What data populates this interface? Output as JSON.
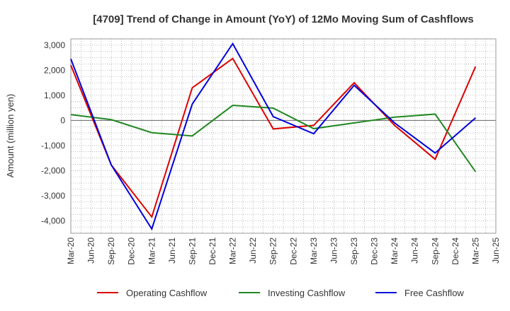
{
  "chart_data": {
    "type": "line",
    "title": "[4709]  Trend of Change in Amount (YoY) of 12Mo Moving Sum of Cashflows",
    "xlabel": "",
    "ylabel": "Amount (million yen)",
    "ylim": [
      -4500,
      3250
    ],
    "yticks": [
      3000,
      2000,
      1000,
      0,
      -1000,
      -2000,
      -3000,
      -4000
    ],
    "ytick_labels": [
      "3,000",
      "2,000",
      "1,000",
      "0",
      "-1,000",
      "-2,000",
      "-3,000",
      "-4,000"
    ],
    "categories": [
      "Mar-20",
      "Jun-20",
      "Sep-20",
      "Dec-20",
      "Mar-21",
      "Jun-21",
      "Sep-21",
      "Dec-21",
      "Mar-22",
      "Jun-22",
      "Sep-22",
      "Dec-22",
      "Mar-23",
      "Jun-23",
      "Sep-23",
      "Dec-23",
      "Mar-24",
      "Jun-24",
      "Sep-24",
      "Dec-24",
      "Mar-25",
      "Jun-25"
    ],
    "grid": true,
    "legend_position": "bottom",
    "series": [
      {
        "name": "Operating Cashflow",
        "color": "#dd0000",
        "values": [
          2200,
          null,
          -1780,
          null,
          -3850,
          null,
          1300,
          null,
          2470,
          null,
          -340,
          null,
          -200,
          null,
          1500,
          null,
          -200,
          null,
          -1550,
          null,
          2150,
          null
        ]
      },
      {
        "name": "Investing Cashflow",
        "color": "#228822",
        "values": [
          230,
          null,
          30,
          null,
          -490,
          null,
          -620,
          null,
          600,
          null,
          490,
          null,
          -330,
          null,
          -100,
          null,
          130,
          null,
          250,
          null,
          -2050,
          null
        ]
      },
      {
        "name": "Free Cashflow",
        "color": "#0000dd",
        "values": [
          2450,
          null,
          -1780,
          null,
          -4330,
          null,
          650,
          null,
          3060,
          null,
          150,
          null,
          -530,
          null,
          1400,
          null,
          -100,
          null,
          -1300,
          null,
          100,
          null
        ]
      }
    ]
  }
}
